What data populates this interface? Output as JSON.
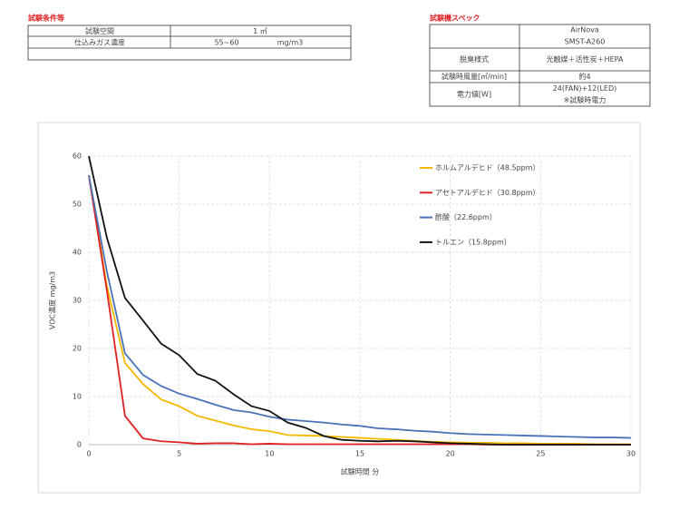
{
  "conditions": {
    "title": "試験条件等",
    "rows": [
      [
        "試験空間",
        "1 ㎥",
        ""
      ],
      [
        "仕込みガス濃度",
        "55~60",
        "mg/m3"
      ]
    ]
  },
  "spec": {
    "title": "試験機スペック",
    "rows": [
      [
        "",
        "AirNova",
        "SMST-A260"
      ],
      [
        "脱臭様式",
        "光触媒＋活性炭＋HEPA",
        ""
      ],
      [
        "試験時風量[㎥/min]",
        "約4",
        ""
      ],
      [
        "電力値[W]",
        "24(FAN)+12(LED)",
        "※試験時電力"
      ]
    ]
  },
  "chart_data": {
    "type": "line",
    "xlabel": "試験時間 分",
    "ylabel": "VOC濃度 mg/m3",
    "x": [
      0,
      1,
      2,
      3,
      4,
      5,
      6,
      7,
      8,
      9,
      10,
      11,
      12,
      13,
      14,
      15,
      16,
      17,
      18,
      19,
      20,
      21,
      22,
      23,
      24,
      25,
      26,
      27,
      28,
      29,
      30
    ],
    "xlim": [
      0,
      30
    ],
    "xticks": [
      0,
      5,
      10,
      15,
      20,
      25,
      30
    ],
    "ylim": [
      0,
      60
    ],
    "yticks": [
      0,
      10,
      20,
      30,
      40,
      50,
      60
    ],
    "grid": true,
    "legend": "upper right",
    "series": [
      {
        "name": "ホルムアルデヒド（48.5ppm）",
        "color": "#f5b800",
        "values": [
          56,
          33,
          17,
          12.6,
          9.4,
          8,
          6,
          5,
          4,
          3.2,
          2.8,
          2,
          1.9,
          1.8,
          1.6,
          1.4,
          1.2,
          1,
          0.8,
          0.6,
          0.5,
          0.4,
          0.4,
          0.3,
          0.3,
          0.2,
          0.2,
          0.2,
          0.1,
          0.1,
          0.1
        ]
      },
      {
        "name": "アセトアルデヒド（30.8ppm）",
        "color": "#e02020",
        "values": [
          56,
          32,
          6,
          1.3,
          0.7,
          0.5,
          0.2,
          0.3,
          0.3,
          0.1,
          0.2,
          0.1,
          0.1,
          0.1,
          0.1,
          0.1,
          0.1,
          0.1,
          0.1,
          0.1,
          0.1,
          0.1,
          0,
          0,
          0,
          0,
          0,
          0,
          0,
          0,
          0
        ]
      },
      {
        "name": "酢酸（22.6ppm）",
        "color": "#4a72b8",
        "values": [
          56,
          36,
          19,
          14.5,
          12.2,
          10.6,
          9.5,
          8.3,
          7.2,
          6.7,
          5.8,
          5.2,
          4.9,
          4.6,
          4.2,
          3.9,
          3.4,
          3.2,
          2.9,
          2.7,
          2.4,
          2.2,
          2.1,
          2,
          1.9,
          1.8,
          1.7,
          1.6,
          1.5,
          1.5,
          1.4
        ]
      },
      {
        "name": "トルエン（15.8ppm）",
        "color": "#111111",
        "values": [
          60,
          43,
          30.5,
          25.8,
          21,
          18.6,
          14.7,
          13.3,
          10.5,
          8,
          7,
          4.6,
          3.5,
          1.8,
          1,
          0.8,
          0.7,
          0.8,
          0.7,
          0.5,
          0.3,
          0.2,
          0.1,
          0,
          0,
          0,
          0,
          0,
          0,
          0,
          0
        ]
      }
    ]
  }
}
